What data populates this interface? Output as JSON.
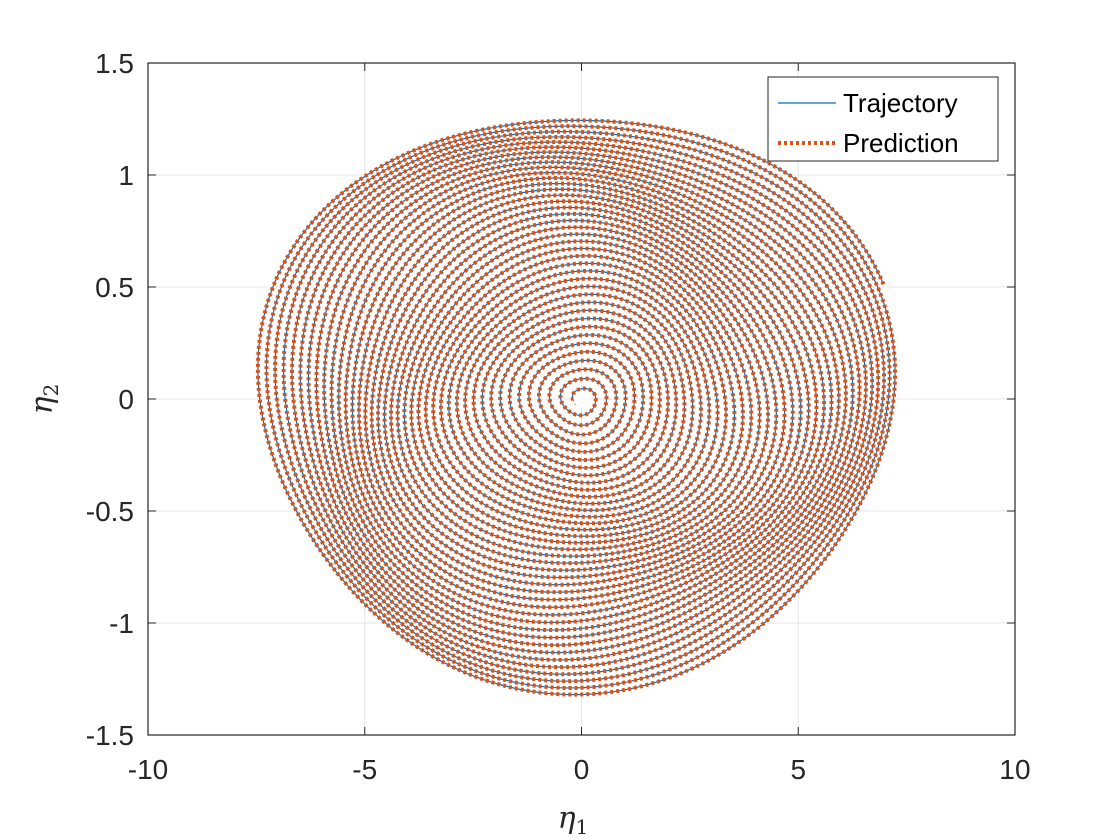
{
  "chart_data": {
    "type": "line",
    "xlabel": "η1",
    "ylabel": "η2",
    "xlabel_main": "η",
    "xlabel_sub": "1",
    "ylabel_main": "η",
    "ylabel_sub": "2",
    "xlim": [
      -10,
      10
    ],
    "ylim": [
      -1.5,
      1.5
    ],
    "xticks": [
      -10,
      -5,
      0,
      5,
      10
    ],
    "xtick_labels": [
      "-10",
      "-5",
      "0",
      "5",
      "10"
    ],
    "yticks": [
      -1.5,
      -1,
      -0.5,
      0,
      0.5,
      1,
      1.5
    ],
    "ytick_labels": [
      "-1.5",
      "-1",
      "-0.5",
      "0",
      "0.5",
      "1",
      "1.5"
    ],
    "grid": true,
    "legend_position": "top-right",
    "series": [
      {
        "name": "Trajectory",
        "style": "solid",
        "color": "#0072BD",
        "description_points": {
          "start": [
            6.9,
            0.5
          ],
          "end": [
            0.0,
            0.0
          ],
          "outer_extent_x": [
            -7.4,
            7.2
          ],
          "outer_extent_y": [
            -1.27,
            1.28
          ],
          "turns": 40
        }
      },
      {
        "name": "Prediction",
        "style": "dotted",
        "color": "#D95319",
        "description_points": {
          "start": [
            6.9,
            0.5
          ],
          "end": [
            0.0,
            0.0
          ],
          "outer_extent_x": [
            -7.4,
            7.2
          ],
          "outer_extent_y": [
            -1.27,
            1.28
          ],
          "turns": 40
        }
      }
    ]
  },
  "colors": {
    "axes": "#262626",
    "grid": "#e6e6e6",
    "trajectory": "#0072BD",
    "prediction": "#D95319"
  }
}
